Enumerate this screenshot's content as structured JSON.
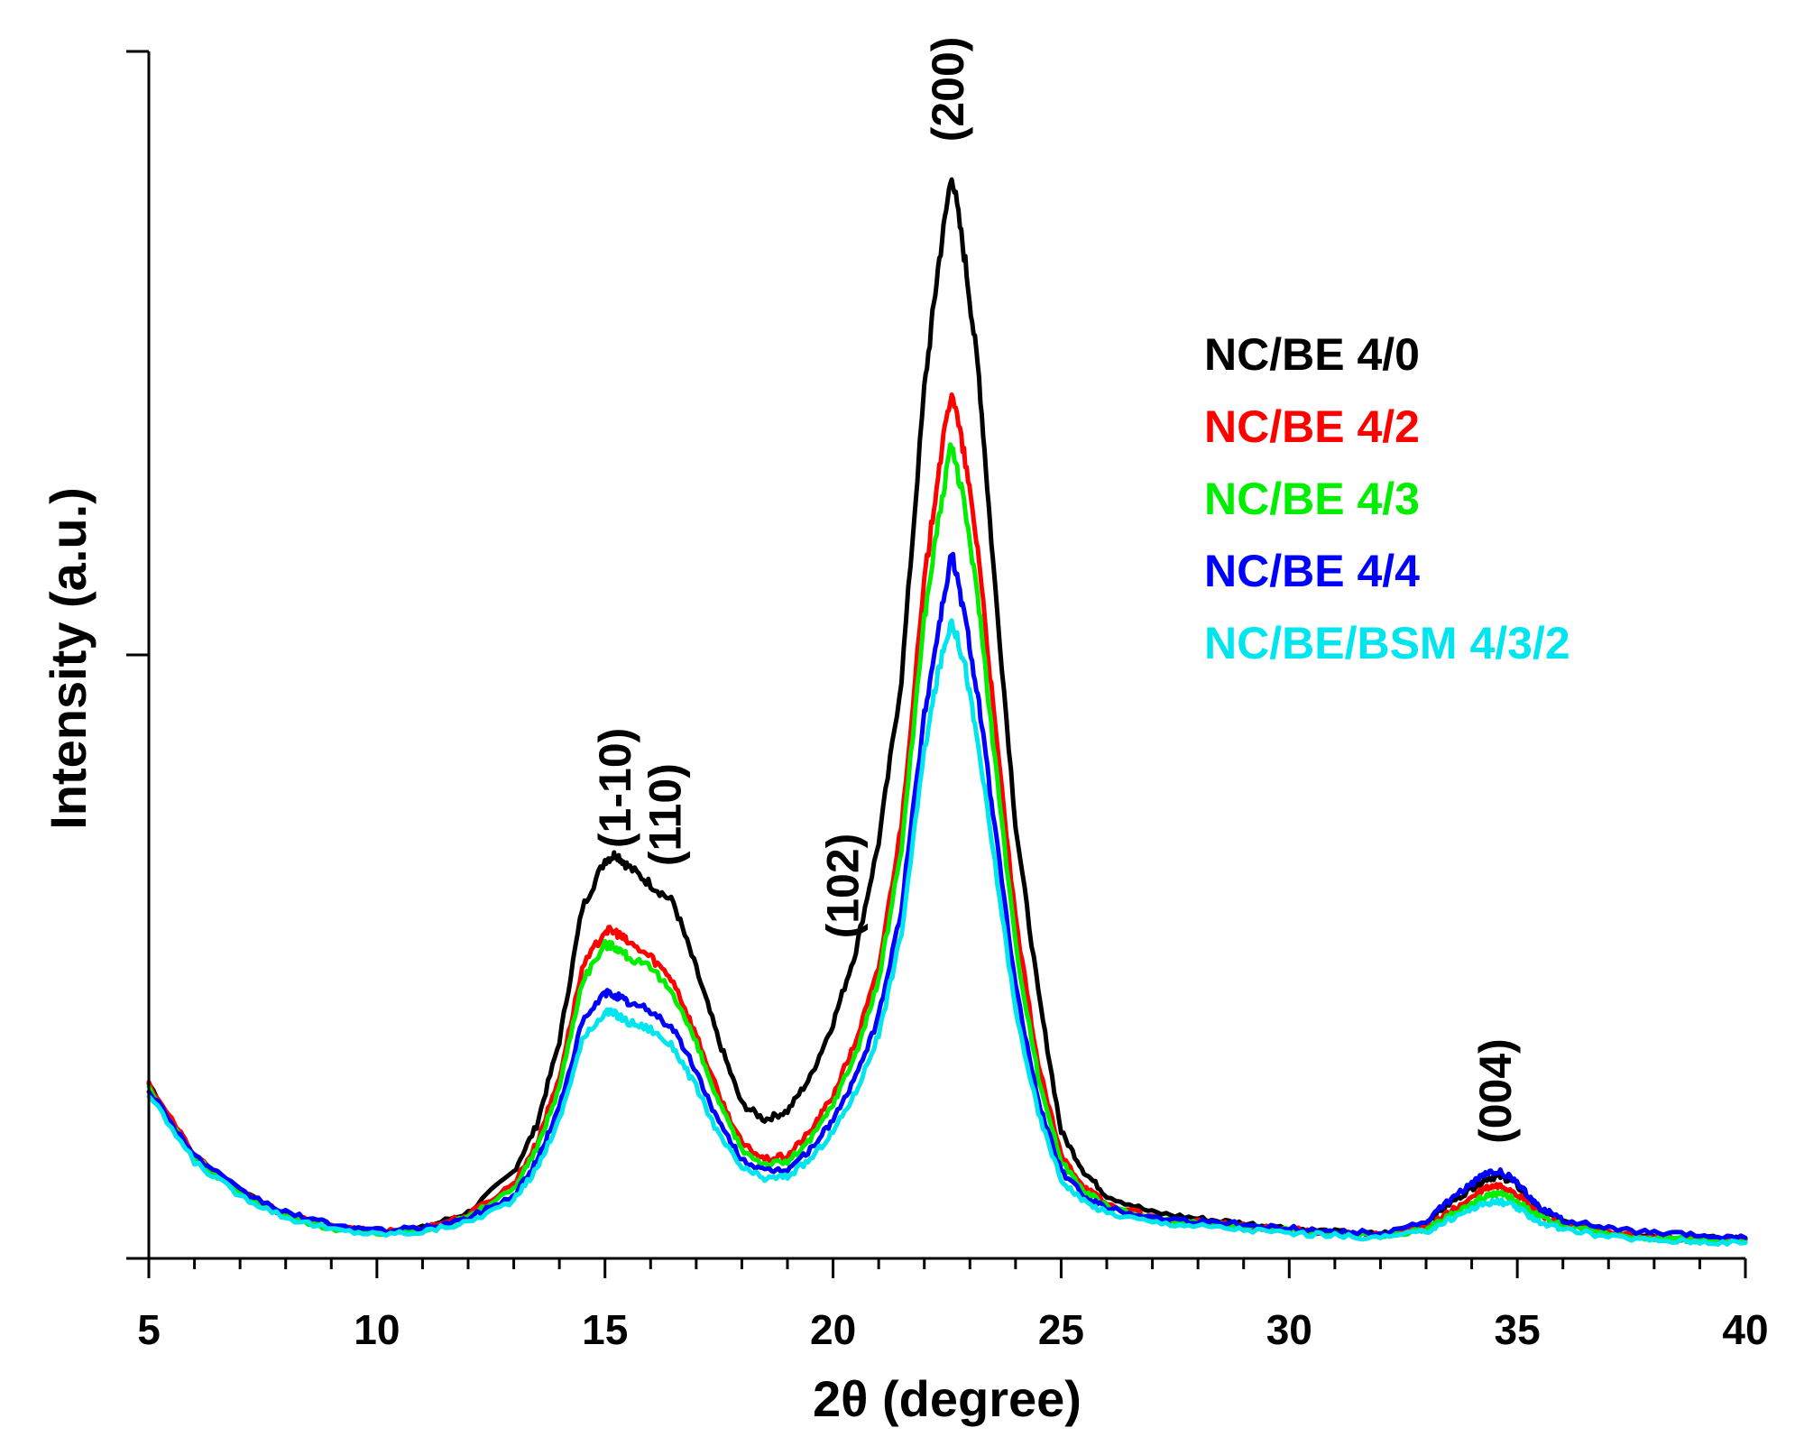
{
  "chart_data": {
    "type": "line",
    "title": "",
    "xlabel": "2θ (degree)",
    "ylabel": "Intensity (a.u.)",
    "xlim": [
      5,
      40
    ],
    "ylim": [
      0,
      10
    ],
    "x_ticks": [
      5,
      10,
      15,
      20,
      25,
      30,
      35,
      40
    ],
    "x_tick_labels": [
      "5",
      "10",
      "15",
      "20",
      "25",
      "30",
      "35",
      "40"
    ],
    "y_tick_labels_shown": false,
    "grid": false,
    "legend_position": "top-right",
    "series": [
      {
        "name": "NC/BE 4/0",
        "color": "#000000",
        "x": [
          5,
          6,
          7,
          8,
          9,
          10,
          11,
          12,
          13,
          13.5,
          14,
          14.5,
          15,
          15.25,
          15.5,
          16,
          16.5,
          17,
          17.5,
          18,
          18.5,
          19,
          19.5,
          20,
          20.5,
          21,
          21.5,
          22,
          22.3,
          22.6,
          22.9,
          23.2,
          23.5,
          24,
          24.5,
          25,
          25.5,
          26,
          27,
          28,
          29,
          30,
          31,
          32,
          33,
          33.5,
          34,
          34.3,
          34.6,
          34.9,
          35.2,
          35.5,
          36,
          37,
          38,
          39,
          40
        ],
        "y": [
          1.45,
          0.85,
          0.55,
          0.36,
          0.26,
          0.22,
          0.25,
          0.38,
          0.72,
          1.1,
          1.8,
          2.9,
          3.3,
          3.35,
          3.25,
          3.1,
          2.95,
          2.4,
          1.8,
          1.28,
          1.15,
          1.22,
          1.5,
          1.95,
          2.55,
          3.45,
          4.8,
          7.2,
          8.2,
          9.0,
          8.25,
          7.3,
          5.8,
          3.6,
          2.2,
          1.05,
          0.72,
          0.52,
          0.38,
          0.33,
          0.29,
          0.25,
          0.22,
          0.2,
          0.3,
          0.45,
          0.58,
          0.66,
          0.68,
          0.64,
          0.52,
          0.4,
          0.3,
          0.22,
          0.19,
          0.17,
          0.16
        ]
      },
      {
        "name": "NC/BE 4/2",
        "color": "#ff0000",
        "x": [
          5,
          6,
          7,
          8,
          9,
          10,
          11,
          12,
          13,
          13.5,
          14,
          14.5,
          15,
          15.25,
          15.5,
          16,
          16.5,
          17,
          17.5,
          18,
          18.5,
          19,
          19.5,
          20,
          20.5,
          21,
          21.5,
          22,
          22.3,
          22.6,
          22.9,
          23.2,
          23.5,
          24,
          24.5,
          25,
          25.5,
          26,
          27,
          28,
          29,
          30,
          31,
          32,
          33,
          33.5,
          34,
          34.3,
          34.6,
          34.9,
          35.2,
          35.5,
          36,
          37,
          38,
          39,
          40
        ],
        "y": [
          1.45,
          0.85,
          0.55,
          0.36,
          0.26,
          0.22,
          0.25,
          0.36,
          0.62,
          0.95,
          1.5,
          2.4,
          2.72,
          2.7,
          2.62,
          2.5,
          2.3,
          1.85,
          1.35,
          0.95,
          0.82,
          0.85,
          1.05,
          1.35,
          1.8,
          2.4,
          3.6,
          5.6,
          6.5,
          7.2,
          6.6,
          5.8,
          4.6,
          2.8,
          1.6,
          0.85,
          0.6,
          0.45,
          0.34,
          0.3,
          0.27,
          0.24,
          0.21,
          0.19,
          0.26,
          0.38,
          0.5,
          0.58,
          0.6,
          0.56,
          0.46,
          0.36,
          0.28,
          0.21,
          0.18,
          0.16,
          0.15
        ]
      },
      {
        "name": "NC/BE 4/3",
        "color": "#00ee00",
        "x": [
          5,
          6,
          7,
          8,
          9,
          10,
          11,
          12,
          13,
          13.5,
          14,
          14.5,
          15,
          15.25,
          15.5,
          16,
          16.5,
          17,
          17.5,
          18,
          18.5,
          19,
          19.5,
          20,
          20.5,
          21,
          21.5,
          22,
          22.3,
          22.6,
          22.9,
          23.2,
          23.5,
          24,
          24.5,
          25,
          25.5,
          26,
          27,
          28,
          29,
          30,
          31,
          32,
          33,
          33.5,
          34,
          34.3,
          34.6,
          34.9,
          35.2,
          35.5,
          36,
          37,
          38,
          39,
          40
        ],
        "y": [
          1.4,
          0.83,
          0.54,
          0.35,
          0.25,
          0.21,
          0.24,
          0.34,
          0.58,
          0.9,
          1.42,
          2.3,
          2.6,
          2.58,
          2.5,
          2.4,
          2.2,
          1.78,
          1.28,
          0.9,
          0.78,
          0.8,
          0.98,
          1.28,
          1.7,
          2.3,
          3.4,
          5.3,
          6.1,
          6.75,
          6.2,
          5.4,
          4.3,
          2.6,
          1.5,
          0.8,
          0.57,
          0.43,
          0.33,
          0.29,
          0.26,
          0.23,
          0.2,
          0.18,
          0.24,
          0.35,
          0.45,
          0.52,
          0.54,
          0.5,
          0.42,
          0.34,
          0.27,
          0.2,
          0.17,
          0.15,
          0.14
        ]
      },
      {
        "name": "NC/BE 4/4",
        "color": "#0000ff",
        "x": [
          5,
          6,
          7,
          8,
          9,
          10,
          11,
          12,
          13,
          13.5,
          14,
          14.5,
          15,
          15.25,
          15.5,
          16,
          16.5,
          17,
          17.5,
          18,
          18.5,
          19,
          19.5,
          20,
          20.5,
          21,
          21.5,
          22,
          22.3,
          22.6,
          22.9,
          23.2,
          23.5,
          24,
          24.5,
          25,
          25.5,
          26,
          27,
          28,
          29,
          30,
          31,
          32,
          33,
          33.5,
          34,
          34.3,
          34.6,
          34.9,
          35.2,
          35.5,
          36,
          37,
          38,
          39,
          40
        ],
        "y": [
          1.4,
          0.85,
          0.56,
          0.38,
          0.28,
          0.23,
          0.25,
          0.33,
          0.52,
          0.8,
          1.25,
          1.95,
          2.2,
          2.18,
          2.12,
          2.05,
          1.9,
          1.55,
          1.12,
          0.82,
          0.72,
          0.74,
          0.9,
          1.15,
          1.5,
          2.0,
          2.9,
          4.5,
          5.2,
          5.85,
          5.3,
          4.6,
          3.7,
          2.25,
          1.3,
          0.72,
          0.52,
          0.42,
          0.34,
          0.31,
          0.28,
          0.25,
          0.22,
          0.21,
          0.3,
          0.48,
          0.62,
          0.7,
          0.72,
          0.66,
          0.54,
          0.42,
          0.32,
          0.25,
          0.21,
          0.19,
          0.17
        ]
      },
      {
        "name": "NC/BE/BSM 4/3/2",
        "color": "#00e5ee",
        "x": [
          5,
          6,
          7,
          8,
          9,
          10,
          11,
          12,
          13,
          13.5,
          14,
          14.5,
          15,
          15.25,
          15.5,
          16,
          16.5,
          17,
          17.5,
          18,
          18.5,
          19,
          19.5,
          20,
          20.5,
          21,
          21.5,
          22,
          22.3,
          22.6,
          22.9,
          23.2,
          23.5,
          24,
          24.5,
          25,
          25.5,
          26,
          27,
          28,
          29,
          30,
          31,
          32,
          33,
          33.5,
          34,
          34.3,
          34.6,
          34.9,
          35.2,
          35.5,
          36,
          37,
          38,
          39,
          40
        ],
        "y": [
          1.35,
          0.8,
          0.52,
          0.34,
          0.24,
          0.2,
          0.22,
          0.3,
          0.48,
          0.74,
          1.15,
          1.8,
          2.05,
          2.02,
          1.96,
          1.9,
          1.75,
          1.42,
          1.02,
          0.75,
          0.66,
          0.68,
          0.82,
          1.05,
          1.38,
          1.85,
          2.7,
          4.2,
          4.85,
          5.3,
          4.9,
          4.2,
          3.4,
          2.05,
          1.2,
          0.65,
          0.47,
          0.38,
          0.3,
          0.27,
          0.24,
          0.21,
          0.19,
          0.17,
          0.22,
          0.32,
          0.41,
          0.46,
          0.47,
          0.44,
          0.37,
          0.3,
          0.24,
          0.18,
          0.15,
          0.14,
          0.13
        ]
      }
    ],
    "annotations": [
      {
        "text": "(1-10)",
        "x": 15.2,
        "y": 3.4
      },
      {
        "text": "(110)",
        "x": 16.3,
        "y": 3.25
      },
      {
        "text": "(102)",
        "x": 20.2,
        "y": 2.65
      },
      {
        "text": "(200)",
        "x": 22.5,
        "y": 9.25
      },
      {
        "text": "(004)",
        "x": 34.5,
        "y": 0.95
      }
    ]
  }
}
